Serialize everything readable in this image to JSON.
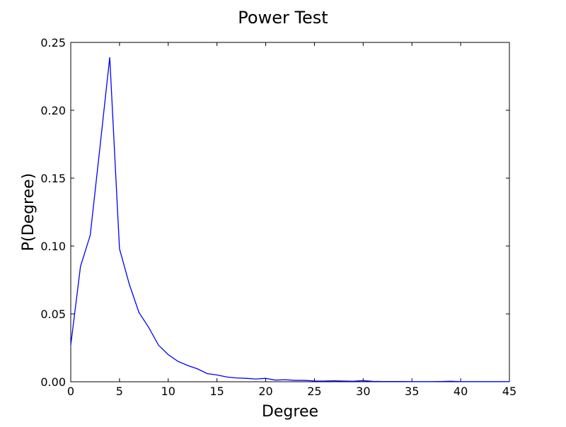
{
  "chart_data": {
    "type": "line",
    "title": "Power Test",
    "xlabel": "Degree",
    "ylabel": "P(Degree)",
    "xlim": [
      0,
      45
    ],
    "ylim": [
      0,
      0.25
    ],
    "xticks": [
      0,
      5,
      10,
      15,
      20,
      25,
      30,
      35,
      40,
      45
    ],
    "xtick_labels": [
      "0",
      "5",
      "10",
      "15",
      "20",
      "25",
      "30",
      "35",
      "40",
      "45"
    ],
    "yticks": [
      0,
      0.05,
      0.1,
      0.15,
      0.2,
      0.25
    ],
    "ytick_labels": [
      "0.00",
      "0.05",
      "0.10",
      "0.15",
      "0.20",
      "0.25"
    ],
    "grid": false,
    "legend": "none",
    "series": [
      {
        "color": "#0000ff",
        "x": [
          0,
          1,
          2,
          3,
          4,
          5,
          6,
          7,
          8,
          9,
          10,
          11,
          12,
          13,
          14,
          15,
          16,
          17,
          18,
          19,
          20,
          21,
          22,
          23,
          24,
          25,
          26,
          27,
          28,
          29,
          30,
          31,
          32,
          33,
          34,
          35,
          36,
          37,
          38,
          39,
          40,
          41,
          42,
          43,
          44,
          45
        ],
        "y": [
          0.027,
          0.085,
          0.108,
          0.173,
          0.239,
          0.098,
          0.072,
          0.051,
          0.04,
          0.027,
          0.02,
          0.015,
          0.012,
          0.0095,
          0.006,
          0.005,
          0.0035,
          0.0028,
          0.0025,
          0.002,
          0.0025,
          0.0012,
          0.0015,
          0.001,
          0.001,
          0.0006,
          0.0005,
          0.0007,
          0.0005,
          0.0004,
          0.0008,
          0.0003,
          0.0002,
          0.0002,
          0.0002,
          0.0001,
          0.0001,
          0.0001,
          0.0002,
          0.0004,
          0.0001,
          0.0001,
          0.0001,
          0.0001,
          0.0001,
          0.0001
        ]
      }
    ]
  }
}
